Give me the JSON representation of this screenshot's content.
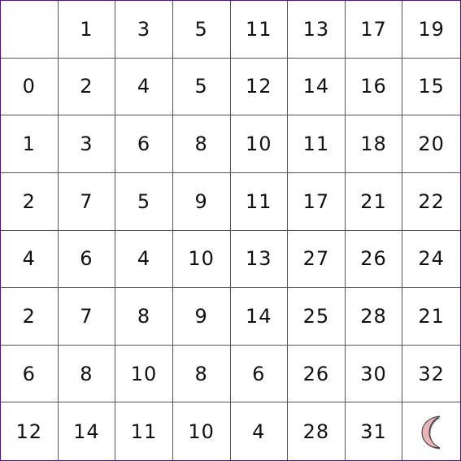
{
  "grid": {
    "rows": [
      [
        "",
        "1",
        "3",
        "5",
        "11",
        "13",
        "17",
        "19"
      ],
      [
        "0",
        "2",
        "4",
        "5",
        "12",
        "14",
        "16",
        "15"
      ],
      [
        "1",
        "3",
        "6",
        "8",
        "10",
        "11",
        "18",
        "20"
      ],
      [
        "2",
        "7",
        "5",
        "9",
        "11",
        "17",
        "21",
        "22"
      ],
      [
        "4",
        "6",
        "4",
        "10",
        "13",
        "27",
        "26",
        "24"
      ],
      [
        "2",
        "7",
        "8",
        "9",
        "14",
        "25",
        "28",
        "21"
      ],
      [
        "6",
        "8",
        "10",
        "8",
        "6",
        "26",
        "30",
        "32"
      ],
      [
        "12",
        "14",
        "11",
        "10",
        "4",
        "28",
        "31",
        ""
      ]
    ]
  },
  "goal": {
    "icon": "crescent-moon-icon",
    "fill": "#e8b4b8",
    "stroke": "#333333",
    "row": 7,
    "col": 7
  },
  "colors": {
    "border": "#4b1a87",
    "grid_line": "#555555"
  }
}
